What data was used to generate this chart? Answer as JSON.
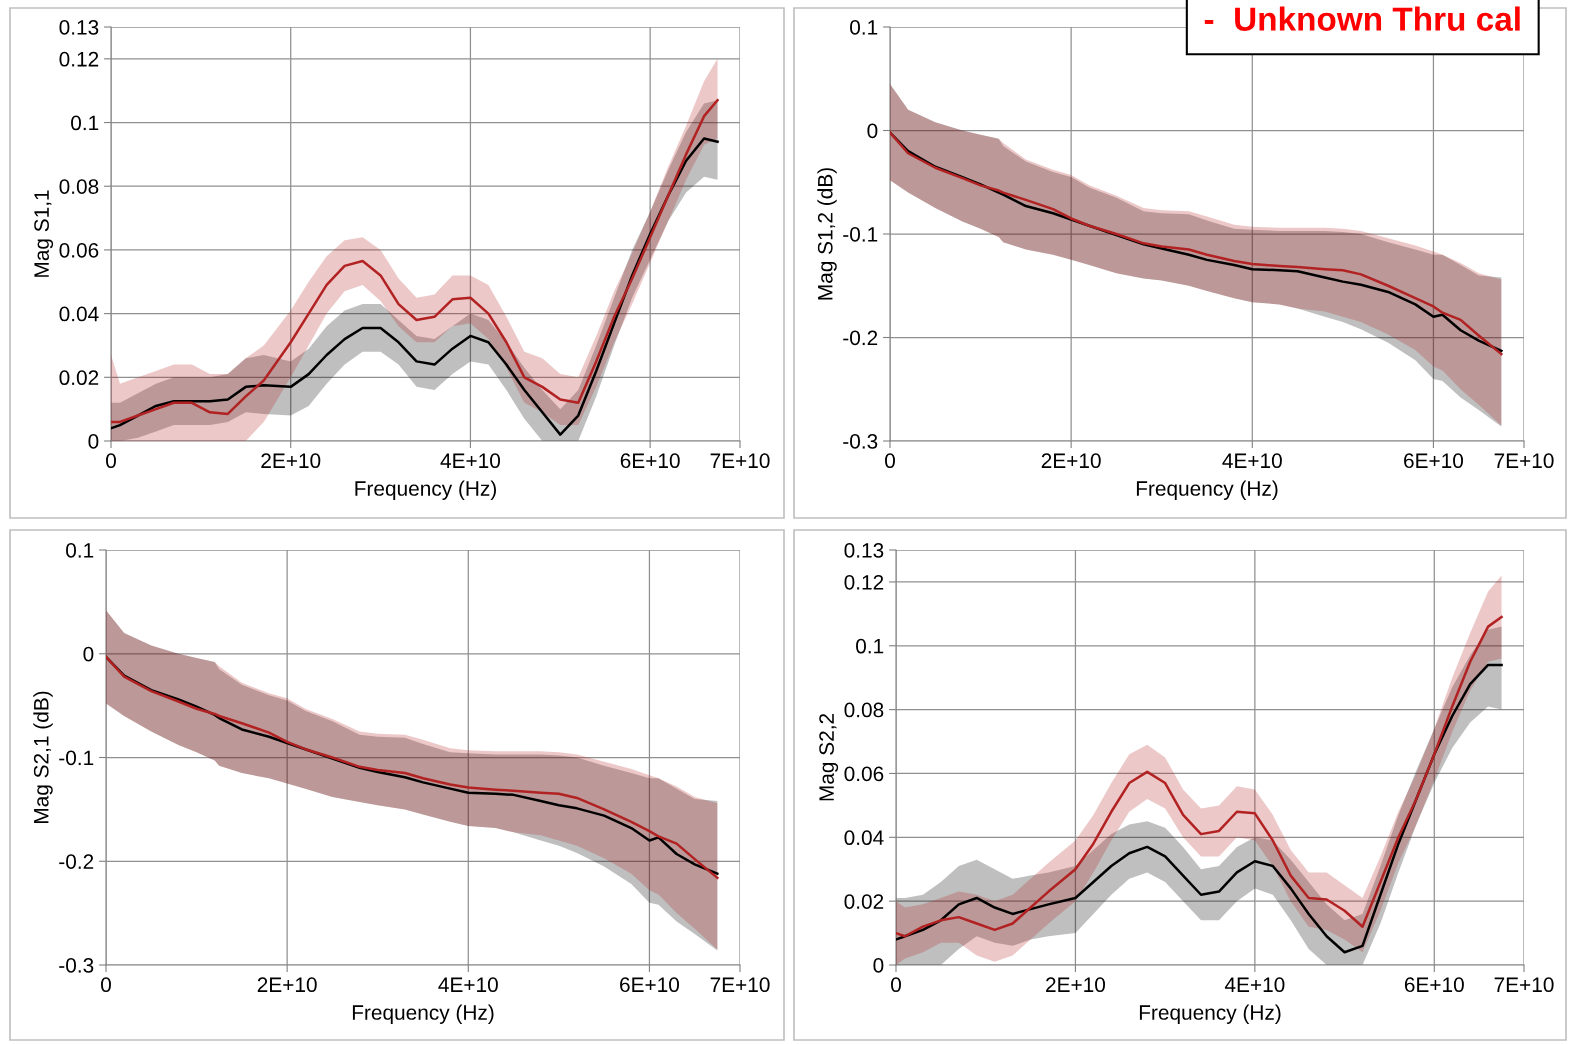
{
  "chart_data": [
    {
      "type": "line",
      "xlabel": "Frequency (Hz)",
      "ylabel": "Mag S1,1",
      "grid": true,
      "xlim": [
        0,
        70000000000.0
      ],
      "xticks": [
        0,
        {
          "value": 20000000000.0,
          "label": "2E+10"
        },
        {
          "value": 40000000000.0,
          "label": "4E+10"
        },
        {
          "value": 60000000000.0,
          "label": "6E+10"
        },
        {
          "value": 70000000000.0,
          "label": "7E+10"
        }
      ],
      "ylim": [
        0,
        0.13
      ],
      "yticks": [
        0,
        0.02,
        0.04,
        0.06,
        0.08,
        0.1,
        0.12,
        0.13
      ],
      "x": [
        0,
        1000000000.0,
        3000000000.0,
        5000000000.0,
        7000000000.0,
        9000000000.0,
        11000000000.0,
        13000000000.0,
        15000000000.0,
        17000000000.0,
        20000000000.0,
        22000000000.0,
        24000000000.0,
        26000000000.0,
        28000000000.0,
        30000000000.0,
        32000000000.0,
        34000000000.0,
        36000000000.0,
        38000000000.0,
        40000000000.0,
        42000000000.0,
        44000000000.0,
        46000000000.0,
        48000000000.0,
        50000000000.0,
        52000000000.0,
        54000000000.0,
        56000000000.0,
        58000000000.0,
        60000000000.0,
        62000000000.0,
        64000000000.0,
        66000000000.0,
        67500000000.0
      ],
      "series": [
        {
          "color": "#000000",
          "values": [
            0.004,
            0.005,
            0.008,
            0.011,
            0.0125,
            0.0125,
            0.0125,
            0.013,
            0.017,
            0.0175,
            0.017,
            0.021,
            0.027,
            0.032,
            0.0355,
            0.0355,
            0.031,
            0.025,
            0.024,
            0.029,
            0.033,
            0.031,
            0.024,
            0.016,
            0.009,
            0.002,
            0.008,
            0.022,
            0.037,
            0.052,
            0.065,
            0.077,
            0.088,
            0.095,
            0.094
          ],
          "lower": [
            0,
            0,
            0.001,
            0.003,
            0.005,
            0.005,
            0.005,
            0.006,
            0.009,
            0.0085,
            0.008,
            0.011,
            0.018,
            0.024,
            0.028,
            0.028,
            0.024,
            0.017,
            0.016,
            0.021,
            0.025,
            0.024,
            0.016,
            0.007,
            0,
            0,
            0,
            0.014,
            0.03,
            0.045,
            0.057,
            0.069,
            0.078,
            0.083,
            0.082
          ],
          "upper": [
            0.012,
            0.012,
            0.015,
            0.018,
            0.02,
            0.02,
            0.02,
            0.021,
            0.026,
            0.027,
            0.025,
            0.029,
            0.036,
            0.041,
            0.043,
            0.043,
            0.038,
            0.033,
            0.032,
            0.036,
            0.04,
            0.038,
            0.031,
            0.023,
            0.016,
            0.01,
            0.016,
            0.03,
            0.045,
            0.06,
            0.072,
            0.085,
            0.097,
            0.106,
            0.107
          ]
        },
        {
          "color": "#b22222",
          "values": [
            0.006,
            0.006,
            0.008,
            0.01,
            0.012,
            0.012,
            0.009,
            0.0085,
            0.014,
            0.019,
            0.031,
            0.04,
            0.049,
            0.055,
            0.0565,
            0.052,
            0.043,
            0.038,
            0.039,
            0.0445,
            0.045,
            0.04,
            0.031,
            0.02,
            0.017,
            0.013,
            0.012,
            0.025,
            0.039,
            0.051,
            0.064,
            0.077,
            0.09,
            0.102,
            0.107
          ],
          "lower": [
            0,
            0,
            0,
            0,
            0,
            0,
            0,
            0,
            0,
            0.006,
            0.02,
            0.03,
            0.04,
            0.047,
            0.049,
            0.044,
            0.036,
            0.031,
            0.031,
            0.036,
            0.037,
            0.032,
            0.023,
            0.012,
            0.009,
            0.005,
            0.005,
            0.017,
            0.031,
            0.043,
            0.056,
            0.069,
            0.082,
            0.093,
            0.095
          ],
          "upper": [
            0.027,
            0.018,
            0.02,
            0.022,
            0.024,
            0.024,
            0.021,
            0.021,
            0.026,
            0.03,
            0.041,
            0.05,
            0.058,
            0.063,
            0.064,
            0.06,
            0.051,
            0.045,
            0.046,
            0.052,
            0.052,
            0.049,
            0.039,
            0.028,
            0.026,
            0.021,
            0.02,
            0.033,
            0.047,
            0.059,
            0.072,
            0.086,
            0.099,
            0.113,
            0.12
          ]
        }
      ]
    },
    {
      "type": "line",
      "xlabel": "Frequency (Hz)",
      "ylabel": "Mag S1,2 (dB)",
      "grid": true,
      "annotations": [
        "-  Unknown Thru cal"
      ],
      "xlim": [
        0,
        70000000000.0
      ],
      "xticks": [
        0,
        {
          "value": 20000000000.0,
          "label": "2E+10"
        },
        {
          "value": 40000000000.0,
          "label": "4E+10"
        },
        {
          "value": 60000000000.0,
          "label": "6E+10"
        },
        {
          "value": 70000000000.0,
          "label": "7E+10"
        }
      ],
      "ylim": [
        -0.3,
        0.1
      ],
      "yticks": [
        -0.3,
        -0.2,
        -0.1,
        0,
        0.1
      ],
      "x": [
        0,
        2000000000.0,
        5000000000.0,
        8000000000.0,
        10000000000.0,
        12000000000.0,
        12500000000.0,
        15000000000.0,
        18000000000.0,
        20000000000.0,
        22000000000.0,
        25000000000.0,
        28000000000.0,
        30000000000.0,
        33000000000.0,
        35000000000.0,
        38000000000.0,
        40000000000.0,
        43000000000.0,
        45000000000.0,
        48000000000.0,
        50000000000.0,
        52000000000.0,
        55000000000.0,
        58000000000.0,
        60000000000.0,
        61000000000.0,
        63000000000.0,
        65000000000.0,
        67500000000.0
      ],
      "series": [
        {
          "color": "#000000",
          "values": [
            -0.002,
            -0.02,
            -0.035,
            -0.045,
            -0.052,
            -0.06,
            -0.062,
            -0.073,
            -0.08,
            -0.086,
            -0.092,
            -0.101,
            -0.11,
            -0.114,
            -0.12,
            -0.125,
            -0.13,
            -0.134,
            -0.135,
            -0.136,
            -0.142,
            -0.146,
            -0.149,
            -0.156,
            -0.168,
            -0.18,
            -0.178,
            -0.193,
            -0.203,
            -0.213
          ],
          "lower": [
            -0.048,
            -0.06,
            -0.075,
            -0.088,
            -0.095,
            -0.103,
            -0.108,
            -0.115,
            -0.12,
            -0.125,
            -0.13,
            -0.138,
            -0.143,
            -0.145,
            -0.15,
            -0.155,
            -0.162,
            -0.166,
            -0.168,
            -0.172,
            -0.18,
            -0.185,
            -0.192,
            -0.205,
            -0.222,
            -0.24,
            -0.242,
            -0.258,
            -0.27,
            -0.286
          ],
          "upper": [
            0.045,
            0.02,
            0.008,
            0,
            -0.004,
            -0.008,
            -0.015,
            -0.03,
            -0.04,
            -0.045,
            -0.055,
            -0.065,
            -0.078,
            -0.08,
            -0.081,
            -0.087,
            -0.095,
            -0.096,
            -0.097,
            -0.097,
            -0.097,
            -0.098,
            -0.1,
            -0.108,
            -0.115,
            -0.12,
            -0.12,
            -0.13,
            -0.14,
            -0.142
          ]
        },
        {
          "color": "#b22222",
          "values": [
            -0.002,
            -0.022,
            -0.036,
            -0.046,
            -0.053,
            -0.058,
            -0.06,
            -0.067,
            -0.076,
            -0.085,
            -0.092,
            -0.1,
            -0.109,
            -0.112,
            -0.115,
            -0.12,
            -0.126,
            -0.129,
            -0.131,
            -0.132,
            -0.134,
            -0.135,
            -0.139,
            -0.15,
            -0.162,
            -0.17,
            -0.176,
            -0.183,
            -0.198,
            -0.216
          ],
          "lower": [
            -0.048,
            -0.06,
            -0.075,
            -0.088,
            -0.095,
            -0.103,
            -0.108,
            -0.115,
            -0.12,
            -0.125,
            -0.13,
            -0.138,
            -0.143,
            -0.145,
            -0.15,
            -0.155,
            -0.162,
            -0.166,
            -0.168,
            -0.172,
            -0.175,
            -0.18,
            -0.185,
            -0.197,
            -0.212,
            -0.228,
            -0.232,
            -0.25,
            -0.265,
            -0.285
          ],
          "upper": [
            0.045,
            0.02,
            0.008,
            0,
            -0.004,
            -0.008,
            -0.012,
            -0.028,
            -0.038,
            -0.043,
            -0.053,
            -0.063,
            -0.075,
            -0.077,
            -0.078,
            -0.083,
            -0.091,
            -0.093,
            -0.094,
            -0.094,
            -0.094,
            -0.095,
            -0.097,
            -0.104,
            -0.111,
            -0.117,
            -0.12,
            -0.128,
            -0.138,
            -0.144
          ]
        }
      ]
    },
    {
      "type": "line",
      "xlabel": "Frequency (Hz)",
      "ylabel": "Mag S2,1 (dB)",
      "grid": true,
      "xlim": [
        0,
        70000000000.0
      ],
      "xticks": [
        0,
        {
          "value": 20000000000.0,
          "label": "2E+10"
        },
        {
          "value": 40000000000.0,
          "label": "4E+10"
        },
        {
          "value": 60000000000.0,
          "label": "6E+10"
        },
        {
          "value": 70000000000.0,
          "label": "7E+10"
        }
      ],
      "ylim": [
        -0.3,
        0.1
      ],
      "yticks": [
        -0.3,
        -0.2,
        -0.1,
        0,
        0.1
      ],
      "x": [
        0,
        2000000000.0,
        5000000000.0,
        8000000000.0,
        10000000000.0,
        12000000000.0,
        12500000000.0,
        15000000000.0,
        18000000000.0,
        20000000000.0,
        22000000000.0,
        25000000000.0,
        28000000000.0,
        30000000000.0,
        33000000000.0,
        35000000000.0,
        38000000000.0,
        40000000000.0,
        43000000000.0,
        45000000000.0,
        48000000000.0,
        50000000000.0,
        52000000000.0,
        55000000000.0,
        58000000000.0,
        60000000000.0,
        61000000000.0,
        63000000000.0,
        65000000000.0,
        67500000000.0
      ],
      "series": [
        {
          "color": "#000000",
          "values": [
            -0.003,
            -0.021,
            -0.035,
            -0.044,
            -0.051,
            -0.059,
            -0.062,
            -0.073,
            -0.08,
            -0.086,
            -0.092,
            -0.101,
            -0.11,
            -0.114,
            -0.119,
            -0.124,
            -0.13,
            -0.134,
            -0.135,
            -0.136,
            -0.142,
            -0.146,
            -0.149,
            -0.156,
            -0.168,
            -0.18,
            -0.177,
            -0.193,
            -0.203,
            -0.212
          ],
          "lower": [
            -0.048,
            -0.06,
            -0.075,
            -0.088,
            -0.095,
            -0.103,
            -0.108,
            -0.115,
            -0.12,
            -0.125,
            -0.13,
            -0.138,
            -0.143,
            -0.146,
            -0.15,
            -0.155,
            -0.162,
            -0.166,
            -0.168,
            -0.172,
            -0.18,
            -0.185,
            -0.192,
            -0.205,
            -0.222,
            -0.24,
            -0.242,
            -0.258,
            -0.27,
            -0.286
          ],
          "upper": [
            0.042,
            0.02,
            0.008,
            0,
            -0.004,
            -0.008,
            -0.015,
            -0.03,
            -0.04,
            -0.045,
            -0.055,
            -0.065,
            -0.078,
            -0.08,
            -0.081,
            -0.087,
            -0.095,
            -0.096,
            -0.097,
            -0.097,
            -0.097,
            -0.098,
            -0.1,
            -0.108,
            -0.115,
            -0.12,
            -0.12,
            -0.13,
            -0.14,
            -0.142
          ]
        },
        {
          "color": "#b22222",
          "values": [
            -0.003,
            -0.022,
            -0.036,
            -0.046,
            -0.053,
            -0.058,
            -0.06,
            -0.067,
            -0.076,
            -0.085,
            -0.092,
            -0.1,
            -0.109,
            -0.112,
            -0.115,
            -0.12,
            -0.126,
            -0.129,
            -0.131,
            -0.132,
            -0.134,
            -0.135,
            -0.139,
            -0.15,
            -0.162,
            -0.171,
            -0.176,
            -0.183,
            -0.198,
            -0.216
          ],
          "lower": [
            -0.048,
            -0.06,
            -0.075,
            -0.088,
            -0.095,
            -0.103,
            -0.108,
            -0.115,
            -0.12,
            -0.125,
            -0.13,
            -0.138,
            -0.143,
            -0.146,
            -0.15,
            -0.155,
            -0.162,
            -0.166,
            -0.168,
            -0.172,
            -0.175,
            -0.18,
            -0.185,
            -0.197,
            -0.212,
            -0.228,
            -0.232,
            -0.25,
            -0.265,
            -0.285
          ],
          "upper": [
            0.042,
            0.02,
            0.008,
            0,
            -0.004,
            -0.008,
            -0.012,
            -0.028,
            -0.038,
            -0.043,
            -0.053,
            -0.063,
            -0.075,
            -0.077,
            -0.078,
            -0.083,
            -0.091,
            -0.093,
            -0.094,
            -0.094,
            -0.094,
            -0.095,
            -0.097,
            -0.104,
            -0.111,
            -0.117,
            -0.12,
            -0.128,
            -0.138,
            -0.144
          ]
        }
      ]
    },
    {
      "type": "line",
      "xlabel": "Frequency (Hz)",
      "ylabel": "Mag S2,2",
      "grid": true,
      "xlim": [
        0,
        70000000000.0
      ],
      "xticks": [
        0,
        {
          "value": 20000000000.0,
          "label": "2E+10"
        },
        {
          "value": 40000000000.0,
          "label": "4E+10"
        },
        {
          "value": 60000000000.0,
          "label": "6E+10"
        },
        {
          "value": 70000000000.0,
          "label": "7E+10"
        }
      ],
      "ylim": [
        0,
        0.13
      ],
      "yticks": [
        0,
        0.02,
        0.04,
        0.06,
        0.08,
        0.1,
        0.12,
        0.13
      ],
      "x": [
        0,
        1000000000.0,
        3000000000.0,
        5000000000.0,
        7000000000.0,
        9000000000.0,
        11000000000.0,
        13000000000.0,
        15000000000.0,
        17000000000.0,
        20000000000.0,
        22000000000.0,
        24000000000.0,
        26000000000.0,
        28000000000.0,
        30000000000.0,
        32000000000.0,
        34000000000.0,
        36000000000.0,
        38000000000.0,
        40000000000.0,
        42000000000.0,
        44000000000.0,
        46000000000.0,
        48000000000.0,
        50000000000.0,
        52000000000.0,
        54000000000.0,
        56000000000.0,
        58000000000.0,
        60000000000.0,
        62000000000.0,
        64000000000.0,
        66000000000.0,
        67500000000.0
      ],
      "series": [
        {
          "color": "#000000",
          "values": [
            0.008,
            0.009,
            0.011,
            0.014,
            0.019,
            0.021,
            0.018,
            0.016,
            0.0175,
            0.019,
            0.021,
            0.026,
            0.031,
            0.035,
            0.037,
            0.034,
            0.028,
            0.022,
            0.023,
            0.029,
            0.0325,
            0.031,
            0.024,
            0.016,
            0.009,
            0.004,
            0.006,
            0.022,
            0.038,
            0.052,
            0.066,
            0.078,
            0.088,
            0.094,
            0.094
          ],
          "lower": [
            0,
            0,
            0,
            0,
            0.005,
            0.009,
            0.007,
            0.006,
            0.008,
            0.009,
            0.01,
            0.016,
            0.022,
            0.027,
            0.029,
            0.026,
            0.02,
            0.014,
            0.014,
            0.02,
            0.024,
            0.022,
            0.014,
            0.005,
            0,
            0,
            0,
            0.013,
            0.029,
            0.044,
            0.057,
            0.068,
            0.076,
            0.081,
            0.08
          ],
          "upper": [
            0.021,
            0.021,
            0.022,
            0.026,
            0.031,
            0.033,
            0.03,
            0.027,
            0.028,
            0.029,
            0.031,
            0.036,
            0.041,
            0.044,
            0.045,
            0.043,
            0.037,
            0.03,
            0.031,
            0.037,
            0.04,
            0.039,
            0.033,
            0.026,
            0.019,
            0.014,
            0.016,
            0.031,
            0.047,
            0.061,
            0.074,
            0.087,
            0.097,
            0.105,
            0.106
          ]
        },
        {
          "color": "#b22222",
          "values": [
            0.01,
            0.009,
            0.012,
            0.014,
            0.015,
            0.013,
            0.011,
            0.013,
            0.018,
            0.023,
            0.03,
            0.038,
            0.048,
            0.057,
            0.0605,
            0.057,
            0.047,
            0.041,
            0.042,
            0.048,
            0.0475,
            0.039,
            0.028,
            0.021,
            0.0205,
            0.017,
            0.012,
            0.026,
            0.04,
            0.052,
            0.066,
            0.081,
            0.095,
            0.106,
            0.109
          ],
          "lower": [
            0,
            0.002,
            0.004,
            0.007,
            0.007,
            0.003,
            0.001,
            0.003,
            0.008,
            0.013,
            0.02,
            0.029,
            0.039,
            0.048,
            0.052,
            0.049,
            0.04,
            0.034,
            0.034,
            0.04,
            0.039,
            0.031,
            0.02,
            0.012,
            0.011,
            0.008,
            0.004,
            0.017,
            0.032,
            0.044,
            0.058,
            0.073,
            0.086,
            0.095,
            0.096
          ],
          "upper": [
            0.02,
            0.018,
            0.019,
            0.021,
            0.023,
            0.022,
            0.02,
            0.022,
            0.027,
            0.032,
            0.039,
            0.047,
            0.057,
            0.066,
            0.069,
            0.065,
            0.055,
            0.049,
            0.05,
            0.056,
            0.055,
            0.047,
            0.036,
            0.029,
            0.029,
            0.025,
            0.021,
            0.034,
            0.048,
            0.06,
            0.074,
            0.09,
            0.104,
            0.117,
            0.122
          ]
        }
      ]
    }
  ]
}
